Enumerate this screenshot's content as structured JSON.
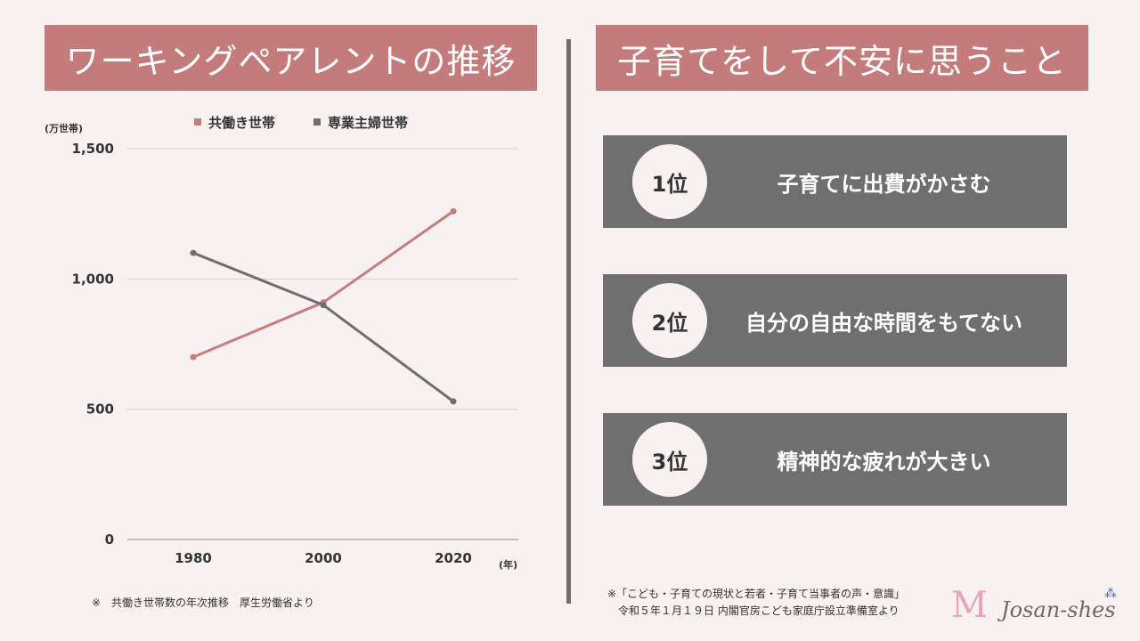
{
  "left_title": "ワーキングペアレントの推移",
  "right_title": "子育てをして不安に思うこと",
  "chart_data": {
    "type": "line",
    "unit_label": "(万世帯)",
    "x_unit_label": "(年)",
    "x": [
      "1980",
      "2000",
      "2020"
    ],
    "series": [
      {
        "name": "共働き世帯",
        "color": "#c97c7c",
        "values": [
          700,
          910,
          1260
        ]
      },
      {
        "name": "専業主婦世帯",
        "color": "#6f6f6f",
        "values": [
          1100,
          900,
          530
        ]
      }
    ],
    "ylim": [
      0,
      1500
    ],
    "yticks": [
      "0",
      "500",
      "1,000",
      "1,500"
    ],
    "ytick_values": [
      0,
      500,
      1000,
      1500
    ],
    "grid": true,
    "legend": "top"
  },
  "source_left": "※　共働き世帯数の年次推移　厚生労働省より",
  "ranking": [
    {
      "rank": "1位",
      "text": "子育てに出費がかさむ"
    },
    {
      "rank": "2位",
      "text": "自分の自由な時間をもてない"
    },
    {
      "rank": "3位",
      "text": "精神的な疲れが大きい"
    }
  ],
  "source_right": [
    "※「こども・子育ての現状と若者・子育て当事者の声・意識」",
    "令和５年１月１９日 内閣官房こども家庭庁設立準備室より"
  ],
  "logo": {
    "mark": "M",
    "text": "Josan-shes"
  }
}
